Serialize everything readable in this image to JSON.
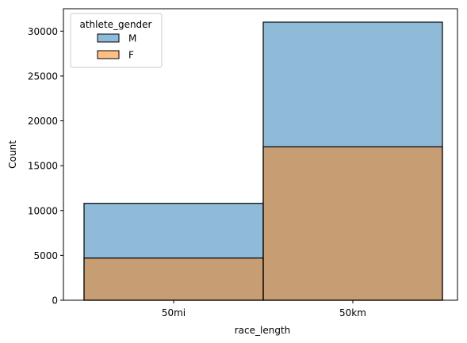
{
  "chart_data": {
    "type": "bar",
    "stacking": "overlay",
    "title": "",
    "xlabel": "race_length",
    "ylabel": "Count",
    "categories": [
      "50mi",
      "50km"
    ],
    "series": [
      {
        "name": "M",
        "values": [
          10800,
          31000
        ],
        "color": "#1f77b4"
      },
      {
        "name": "F",
        "values": [
          4700,
          17100
        ],
        "color": "#ff7f0e"
      }
    ],
    "ylim": [
      0,
      32500
    ],
    "yticks": [
      0,
      5000,
      10000,
      15000,
      20000,
      25000,
      30000
    ],
    "grid": false,
    "legend": {
      "title": "athlete_gender",
      "position": "top-left"
    }
  }
}
